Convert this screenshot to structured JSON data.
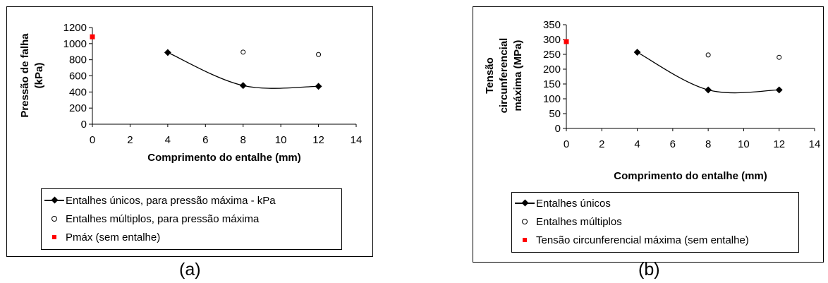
{
  "chart_data": [
    {
      "id": "a",
      "type": "scatter",
      "ylabel_lines": [
        "Pressão de falha",
        "(kPa)"
      ],
      "xlabel": "Comprimento do entalhe (mm)",
      "xlim": [
        0,
        14
      ],
      "ylim": [
        0,
        1200
      ],
      "xticks": [
        0,
        2,
        4,
        6,
        8,
        10,
        12,
        14
      ],
      "yticks": [
        0,
        200,
        400,
        600,
        800,
        1000,
        1200
      ],
      "grid": false,
      "legend_position": "bottom",
      "series": [
        {
          "name": "Entalhes únicos, para pressão máxima - kPa",
          "marker": "diamond",
          "line": "smooth",
          "color": "#000000",
          "points": [
            [
              4,
              890
            ],
            [
              8,
              480
            ],
            [
              12,
              470
            ]
          ]
        },
        {
          "name": "Entalhes múltiplos, para pressão máxima",
          "marker": "circle",
          "line": "none",
          "color": "#000000",
          "points": [
            [
              8,
              895
            ],
            [
              12,
              865
            ]
          ]
        },
        {
          "name": "Pmáx (sem entalhe)",
          "marker": "square",
          "line": "none",
          "color": "#ff0000",
          "points": [
            [
              0,
              1085
            ]
          ]
        }
      ]
    },
    {
      "id": "b",
      "type": "scatter",
      "ylabel_lines": [
        "Tensão",
        "circunferencial",
        "máxima (MPa)"
      ],
      "xlabel": "Comprimento do entalhe (mm)",
      "xlim": [
        0,
        14
      ],
      "ylim": [
        0,
        350
      ],
      "xticks": [
        0,
        2,
        4,
        6,
        8,
        10,
        12,
        14
      ],
      "yticks": [
        0,
        50,
        100,
        150,
        200,
        250,
        300,
        350
      ],
      "grid": false,
      "legend_position": "bottom",
      "series": [
        {
          "name": "Entalhes únicos",
          "marker": "diamond",
          "line": "smooth",
          "color": "#000000",
          "points": [
            [
              4,
              257
            ],
            [
              8,
              130
            ],
            [
              12,
              130
            ]
          ]
        },
        {
          "name": "Entalhes múltiplos",
          "marker": "circle",
          "line": "none",
          "color": "#000000",
          "points": [
            [
              8,
              248
            ],
            [
              12,
              240
            ]
          ]
        },
        {
          "name": "Tensão circunferencial máxima (sem entalhe)",
          "marker": "square",
          "line": "none",
          "color": "#ff0000",
          "points": [
            [
              0,
              293
            ]
          ]
        }
      ]
    }
  ],
  "captions": {
    "a": "(a)",
    "b": "(b)"
  }
}
